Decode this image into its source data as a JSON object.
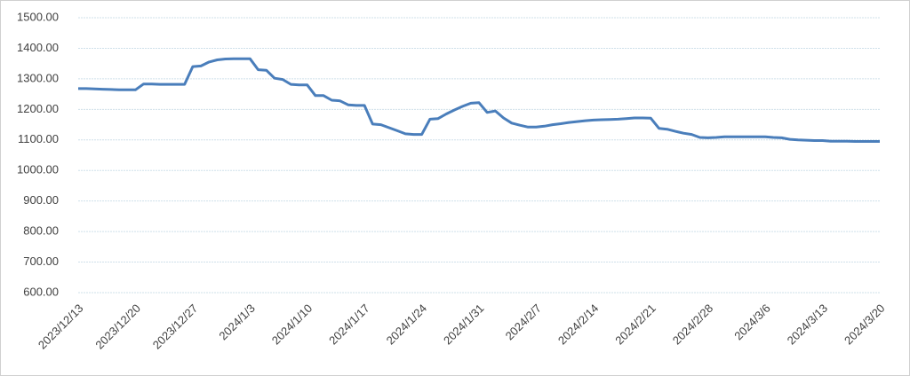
{
  "chart_data": {
    "type": "line",
    "x": [
      "2023/12/13",
      "2023/12/14",
      "2023/12/15",
      "2023/12/16",
      "2023/12/17",
      "2023/12/18",
      "2023/12/19",
      "2023/12/20",
      "2023/12/21",
      "2023/12/22",
      "2023/12/23",
      "2023/12/24",
      "2023/12/25",
      "2023/12/26",
      "2023/12/27",
      "2023/12/28",
      "2023/12/29",
      "2023/12/30",
      "2023/12/31",
      "2024/1/1",
      "2024/1/2",
      "2024/1/3",
      "2024/1/4",
      "2024/1/5",
      "2024/1/6",
      "2024/1/7",
      "2024/1/8",
      "2024/1/9",
      "2024/1/10",
      "2024/1/11",
      "2024/1/12",
      "2024/1/13",
      "2024/1/14",
      "2024/1/15",
      "2024/1/16",
      "2024/1/17",
      "2024/1/18",
      "2024/1/19",
      "2024/1/20",
      "2024/1/21",
      "2024/1/22",
      "2024/1/23",
      "2024/1/24",
      "2024/1/25",
      "2024/1/26",
      "2024/1/27",
      "2024/1/28",
      "2024/1/29",
      "2024/1/30",
      "2024/1/31",
      "2024/2/1",
      "2024/2/2",
      "2024/2/3",
      "2024/2/4",
      "2024/2/5",
      "2024/2/6",
      "2024/2/7",
      "2024/2/8",
      "2024/2/9",
      "2024/2/10",
      "2024/2/11",
      "2024/2/12",
      "2024/2/13",
      "2024/2/14",
      "2024/2/15",
      "2024/2/16",
      "2024/2/17",
      "2024/2/18",
      "2024/2/19",
      "2024/2/20",
      "2024/2/21",
      "2024/2/22",
      "2024/2/23",
      "2024/2/24",
      "2024/2/25",
      "2024/2/26",
      "2024/2/27",
      "2024/2/28",
      "2024/2/29",
      "2024/3/1",
      "2024/3/2",
      "2024/3/3",
      "2024/3/4",
      "2024/3/5",
      "2024/3/6",
      "2024/3/7",
      "2024/3/8",
      "2024/3/9",
      "2024/3/10",
      "2024/3/11",
      "2024/3/12",
      "2024/3/13",
      "2024/3/14",
      "2024/3/15",
      "2024/3/16",
      "2024/3/17",
      "2024/3/18",
      "2024/3/19",
      "2024/3/20"
    ],
    "series": [
      {
        "color": "#4a7ebb",
        "values": [
          1268,
          1268,
          1267,
          1266,
          1265,
          1264,
          1264,
          1264,
          1283,
          1283,
          1282,
          1282,
          1282,
          1282,
          1340,
          1342,
          1355,
          1362,
          1365,
          1366,
          1366,
          1366,
          1330,
          1328,
          1302,
          1298,
          1282,
          1280,
          1280,
          1245,
          1245,
          1230,
          1228,
          1215,
          1213,
          1213,
          1152,
          1150,
          1140,
          1130,
          1120,
          1118,
          1118,
          1168,
          1170,
          1185,
          1198,
          1210,
          1220,
          1222,
          1190,
          1195,
          1172,
          1155,
          1148,
          1142,
          1142,
          1145,
          1150,
          1153,
          1157,
          1160,
          1163,
          1165,
          1166,
          1167,
          1168,
          1170,
          1172,
          1172,
          1171,
          1138,
          1135,
          1128,
          1122,
          1118,
          1108,
          1107,
          1108,
          1110,
          1110,
          1110,
          1110,
          1110,
          1110,
          1108,
          1107,
          1102,
          1100,
          1099,
          1098,
          1098,
          1096,
          1096,
          1096,
          1095,
          1095,
          1095,
          1095
        ]
      }
    ],
    "xticks": [
      "2023/12/13",
      "2023/12/20",
      "2023/12/27",
      "2024/1/3",
      "2024/1/10",
      "2024/1/17",
      "2024/1/24",
      "2024/1/31",
      "2024/2/7",
      "2024/2/14",
      "2024/2/21",
      "2024/2/28",
      "2024/3/6",
      "2024/3/13",
      "2024/3/20"
    ],
    "ylim": [
      600,
      1500
    ],
    "yticks": [
      {
        "value": 600,
        "label": "600.00"
      },
      {
        "value": 700,
        "label": "700.00"
      },
      {
        "value": 800,
        "label": "800.00"
      },
      {
        "value": 900,
        "label": "900.00"
      },
      {
        "value": 1000,
        "label": "1000.00"
      },
      {
        "value": 1100,
        "label": "1100.00"
      },
      {
        "value": 1200,
        "label": "1200.00"
      },
      {
        "value": 1300,
        "label": "1300.00"
      },
      {
        "value": 1400,
        "label": "1400.00"
      },
      {
        "value": 1500,
        "label": "1500.00"
      }
    ],
    "grid": true
  }
}
